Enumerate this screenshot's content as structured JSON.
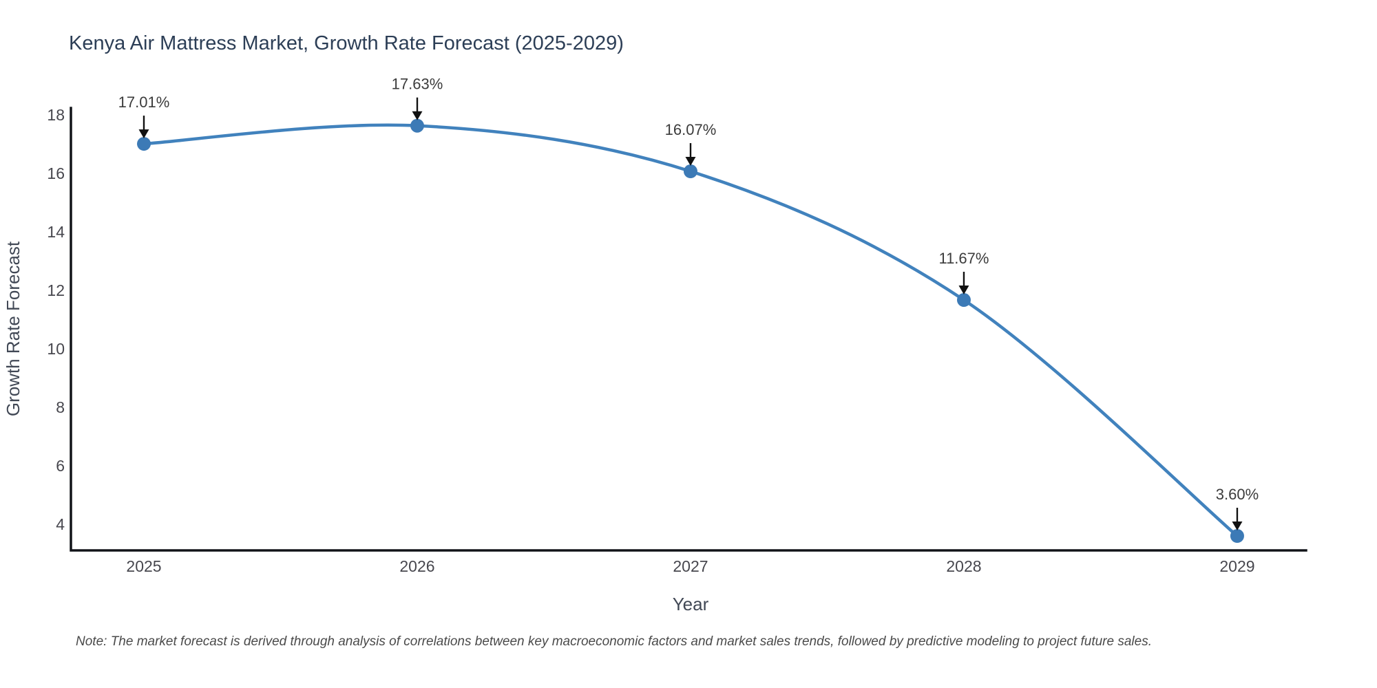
{
  "page": {
    "background": "#ffffff"
  },
  "chart_data": {
    "type": "line",
    "title": "Kenya Air Mattress Market, Growth Rate Forecast (2025-2029)",
    "xlabel": "Year",
    "ylabel": "Growth Rate Forecast",
    "note": "Note: The market forecast is derived through analysis of correlations between key macroeconomic factors and market sales trends, followed by predictive modeling to project future sales.",
    "x": [
      2025,
      2026,
      2027,
      2028,
      2029
    ],
    "values": [
      17.01,
      17.63,
      16.07,
      11.67,
      3.6
    ],
    "point_labels": [
      "17.01%",
      "17.63%",
      "16.07%",
      "11.67%",
      "3.60%"
    ],
    "xtick_labels": [
      "2025",
      "2026",
      "2027",
      "2028",
      "2029"
    ],
    "yticks": [
      4,
      6,
      8,
      10,
      12,
      14,
      16,
      18
    ],
    "xlim": [
      2024.733,
      2029.252
    ],
    "ylim": [
      3.106,
      18.235
    ],
    "line_shape": "spline",
    "grid": false,
    "legend_position": "none",
    "colors": {
      "line": "#4182bd",
      "marker": "#3c7ab6",
      "axis_line": "#111318",
      "tick_label": "#47474e",
      "annotation_text": "#3b3b3b",
      "arrow": "#111111",
      "title": "#2c3e56",
      "axis_title": "#414855",
      "note": "#4a4a4a",
      "background": "#ffffff"
    }
  }
}
